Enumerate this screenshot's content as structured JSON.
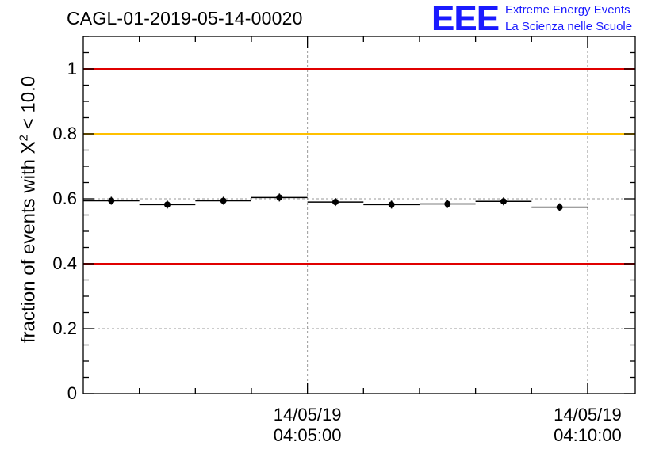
{
  "title": "CAGL-01-2019-05-14-00020",
  "logo": {
    "mark": "EEE",
    "line1": "Extreme Energy Events",
    "line2": "La Scienza nelle Scuole",
    "color": "#1a1aff"
  },
  "chart_data": {
    "type": "scatter",
    "title": "CAGL-01-2019-05-14-00020",
    "ylabel": {
      "prefix": "fraction of events with ",
      "symbol": "X",
      "sup": "2",
      "suffix": " < 10.0"
    },
    "xlabel": "",
    "ylim": [
      0,
      1.1
    ],
    "grid": true,
    "x_unit": "minutes after 14/05/19 04:00:00",
    "xlim": [
      1.0,
      10.85
    ],
    "xticks": [
      {
        "x": 5,
        "date": "14/05/19",
        "time": "04:05:00"
      },
      {
        "x": 10,
        "date": "14/05/19",
        "time": "04:10:00"
      }
    ],
    "yticks": [
      {
        "v": 0,
        "label": "0"
      },
      {
        "v": 0.2,
        "label": "0.2"
      },
      {
        "v": 0.4,
        "label": "0.4"
      },
      {
        "v": 0.6,
        "label": "0.6"
      },
      {
        "v": 0.8,
        "label": "0.8"
      },
      {
        "v": 1.0,
        "label": "1"
      }
    ],
    "reference_lines": [
      {
        "y": 1.0,
        "color": "#e00000"
      },
      {
        "y": 0.8,
        "color": "#ffc000"
      },
      {
        "y": 0.4,
        "color": "#e00000"
      }
    ],
    "series": [
      {
        "points": [
          {
            "x0": 1.0,
            "x1": 2.0,
            "y": 0.594
          },
          {
            "x0": 2.0,
            "x1": 3.0,
            "y": 0.582
          },
          {
            "x0": 3.0,
            "x1": 4.0,
            "y": 0.594
          },
          {
            "x0": 4.0,
            "x1": 5.0,
            "y": 0.604
          },
          {
            "x0": 5.0,
            "x1": 6.0,
            "y": 0.59
          },
          {
            "x0": 6.0,
            "x1": 7.0,
            "y": 0.582
          },
          {
            "x0": 7.0,
            "x1": 8.0,
            "y": 0.584
          },
          {
            "x0": 8.0,
            "x1": 9.0,
            "y": 0.592
          },
          {
            "x0": 9.0,
            "x1": 10.0,
            "y": 0.574
          }
        ]
      }
    ]
  }
}
